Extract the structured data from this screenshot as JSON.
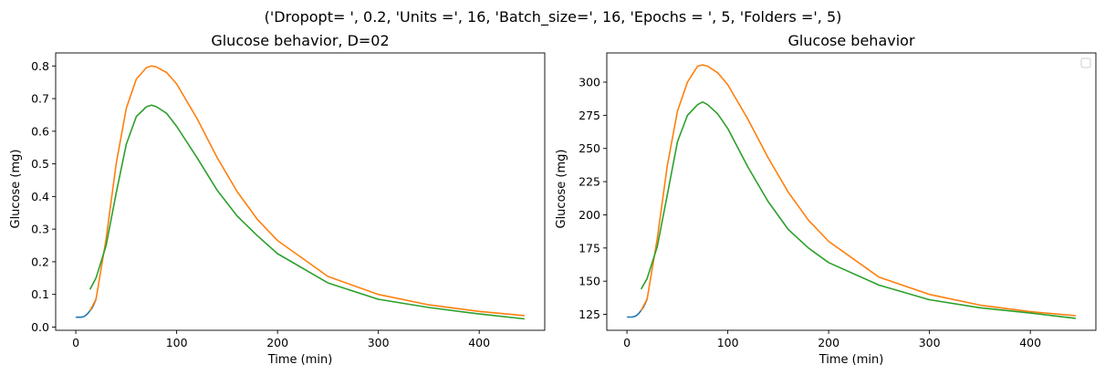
{
  "suptitle": "('Dropopt= ', 0.2, 'Units =', 16, 'Batch_size=', 16, 'Epochs = ', 5, 'Folders =', 5)",
  "colors": {
    "series_1": "#1f77b4",
    "series_2": "#ff7f0e",
    "series_3": "#2ca02c"
  },
  "chart_data": [
    {
      "type": "line",
      "title": "Glucose behavior, D=02",
      "xlabel": "Time (min)",
      "ylabel": "Glucose (mg)",
      "xlim": [
        -20,
        465
      ],
      "ylim": [
        -0.01,
        0.84
      ],
      "xticks": [
        0,
        100,
        200,
        300,
        400
      ],
      "yticks": [
        0.0,
        0.1,
        0.2,
        0.3,
        0.4,
        0.5,
        0.6,
        0.7,
        0.8
      ],
      "ytick_labels": [
        "0.0",
        "0.1",
        "0.2",
        "0.3",
        "0.4",
        "0.5",
        "0.6",
        "0.7",
        "0.8"
      ],
      "grid": false,
      "legend": false,
      "series": [
        {
          "x": [
            0,
            5,
            8,
            10,
            12,
            14,
            16,
            18,
            20
          ],
          "y": [
            0.03,
            0.03,
            0.032,
            0.036,
            0.042,
            0.05,
            0.058,
            0.07,
            0.085
          ]
        },
        {
          "x": [
            14,
            20,
            30,
            40,
            50,
            60,
            70,
            75,
            80,
            90,
            100,
            120,
            140,
            160,
            180,
            200,
            250,
            300,
            350,
            400,
            445
          ],
          "y": [
            0.05,
            0.085,
            0.27,
            0.5,
            0.67,
            0.76,
            0.795,
            0.8,
            0.797,
            0.78,
            0.745,
            0.64,
            0.52,
            0.415,
            0.33,
            0.265,
            0.155,
            0.1,
            0.068,
            0.048,
            0.035
          ]
        },
        {
          "x": [
            14,
            20,
            30,
            40,
            50,
            60,
            70,
            75,
            80,
            90,
            100,
            120,
            140,
            160,
            180,
            200,
            250,
            300,
            350,
            400,
            445
          ],
          "y": [
            0.115,
            0.15,
            0.25,
            0.41,
            0.56,
            0.645,
            0.675,
            0.68,
            0.675,
            0.655,
            0.615,
            0.52,
            0.42,
            0.34,
            0.28,
            0.225,
            0.135,
            0.085,
            0.06,
            0.04,
            0.025
          ]
        }
      ]
    },
    {
      "type": "line",
      "title": "Glucose behavior",
      "xlabel": "Time (min)",
      "ylabel": "Glucose (mg)",
      "xlim": [
        -20,
        465
      ],
      "ylim": [
        113,
        322
      ],
      "xticks": [
        0,
        100,
        200,
        300,
        400
      ],
      "yticks": [
        125,
        150,
        175,
        200,
        225,
        250,
        275,
        300
      ],
      "ytick_labels": [
        "125",
        "150",
        "175",
        "200",
        "225",
        "250",
        "275",
        "300"
      ],
      "grid": false,
      "legend": true,
      "legend_position": "top-right",
      "series": [
        {
          "x": [
            0,
            5,
            8,
            10,
            12,
            14,
            16,
            18,
            20
          ],
          "y": [
            123,
            123,
            123.5,
            124.5,
            126,
            128,
            130,
            133,
            136.5
          ]
        },
        {
          "x": [
            14,
            20,
            30,
            40,
            50,
            60,
            70,
            75,
            80,
            90,
            100,
            120,
            140,
            160,
            180,
            200,
            250,
            300,
            350,
            400,
            445
          ],
          "y": [
            128,
            136.5,
            182,
            237,
            278,
            300,
            312,
            313,
            312,
            307,
            298,
            272,
            243,
            217,
            196,
            180,
            153,
            140,
            132,
            127,
            124
          ]
        },
        {
          "x": [
            14,
            20,
            30,
            40,
            50,
            60,
            70,
            75,
            80,
            90,
            100,
            120,
            140,
            160,
            180,
            200,
            250,
            300,
            350,
            400,
            445
          ],
          "y": [
            144,
            152,
            176,
            215,
            255,
            275,
            283,
            285,
            283,
            276,
            265,
            236,
            210,
            189,
            175,
            164,
            147,
            136,
            130,
            126,
            122
          ]
        }
      ]
    }
  ]
}
